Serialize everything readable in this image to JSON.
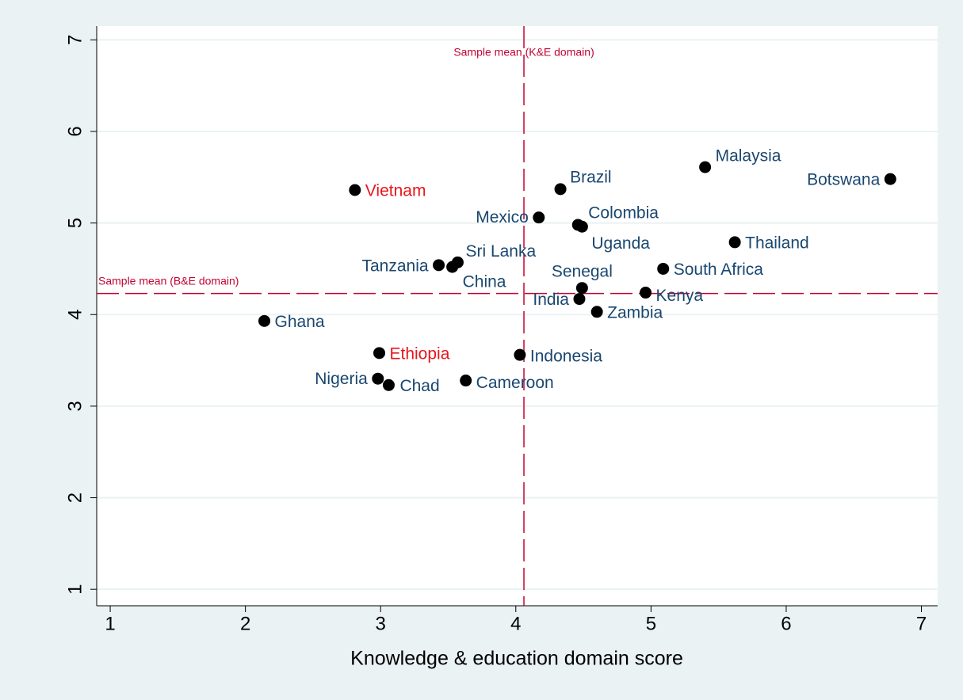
{
  "chart_data": {
    "type": "scatter",
    "x_label": "Knowledge & education domain score",
    "labels": [
      "Vietnam",
      "Ghana",
      "Ethiopia",
      "Nigeria",
      "Chad",
      "Cameroon",
      "Tanzania",
      "China",
      "Sri Lanka",
      "Indonesia",
      "Mexico",
      "Brazil",
      "Colombia",
      "Uganda",
      "Senegal",
      "India",
      "Zambia",
      "Kenya",
      "South Africa",
      "Thailand",
      "Malaysia",
      "Botswana"
    ],
    "x": [
      2.81,
      2.14,
      2.99,
      2.98,
      3.06,
      3.63,
      3.43,
      3.53,
      3.57,
      4.03,
      4.17,
      4.33,
      4.46,
      4.49,
      4.49,
      4.47,
      4.6,
      4.96,
      5.09,
      5.62,
      5.4,
      6.77
    ],
    "values": [
      5.36,
      3.93,
      3.58,
      3.3,
      3.23,
      3.28,
      4.54,
      4.52,
      4.57,
      3.56,
      5.06,
      5.37,
      4.98,
      4.96,
      4.29,
      4.17,
      4.03,
      4.24,
      4.5,
      4.79,
      5.61,
      5.48
    ],
    "label_colors": [
      "#e8151b",
      "#1a476f",
      "#e8151b",
      "#1a476f",
      "#1a476f",
      "#1a476f",
      "#1a476f",
      "#1a476f",
      "#1a476f",
      "#1a476f",
      "#1a476f",
      "#1a476f",
      "#1a476f",
      "#1a476f",
      "#1a476f",
      "#1a476f",
      "#1a476f",
      "#1a476f",
      "#1a476f",
      "#1a476f",
      "#1a476f",
      "#1a476f"
    ],
    "marker_color": "#000000",
    "reference_lines": [
      {
        "axis": "x",
        "value": 4.06,
        "label": "Sample mean (K&E domain)",
        "color": "#c10534"
      },
      {
        "axis": "y",
        "value": 4.23,
        "label": "Sample mean (B&E domain)",
        "color": "#c10534"
      }
    ],
    "xlim": [
      0.9,
      7.12
    ],
    "ylim": [
      0.82,
      7.15
    ],
    "xticks": [
      1,
      2,
      3,
      4,
      5,
      6,
      7
    ],
    "yticks": [
      1,
      2,
      3,
      4,
      5,
      6,
      7
    ],
    "grid": true
  }
}
